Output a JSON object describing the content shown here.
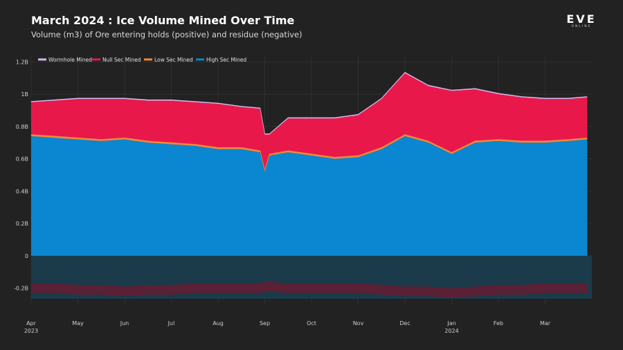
{
  "header": {
    "title": "March 2024 : Ice Volume Mined Over Time",
    "subtitle": "Volume (m3) of Ore entering holds (positive) and residue (negative)"
  },
  "logo": {
    "main": "EVE",
    "sub": "ONLINE"
  },
  "colors": {
    "background": "#222222",
    "grid": "#3a3a3a",
    "wormhole": "#d6b8f0",
    "null_sec": "#e8194a",
    "low_sec": "#f08a3a",
    "high_sec": "#0a87d0",
    "residue_fill": "#1b3a4a",
    "residue_band": "#5a2036"
  },
  "chart_data": {
    "type": "area",
    "title": "March 2024 : Ice Volume Mined Over Time",
    "subtitle": "Volume (m3) of Ore entering holds (positive) and residue (negative)",
    "stacked": true,
    "ylim": [
      -0.3,
      1.24
    ],
    "y_ticks": [
      {
        "value": 1.2,
        "label": "1.2B"
      },
      {
        "value": 1.0,
        "label": "1B"
      },
      {
        "value": 0.8,
        "label": "0.8B"
      },
      {
        "value": 0.6,
        "label": "0.6B"
      },
      {
        "value": 0.4,
        "label": "0.4B"
      },
      {
        "value": 0.2,
        "label": "0.2B"
      },
      {
        "value": 0.0,
        "label": "0"
      },
      {
        "value": -0.2,
        "label": "-0.2B"
      }
    ],
    "x_ticks": [
      {
        "month": 0,
        "label": "Apr",
        "year": "2023"
      },
      {
        "month": 1,
        "label": "May",
        "year": ""
      },
      {
        "month": 2,
        "label": "Jun",
        "year": ""
      },
      {
        "month": 3,
        "label": "Jul",
        "year": ""
      },
      {
        "month": 4,
        "label": "Aug",
        "year": ""
      },
      {
        "month": 5,
        "label": "Sep",
        "year": ""
      },
      {
        "month": 6,
        "label": "Oct",
        "year": ""
      },
      {
        "month": 7,
        "label": "Nov",
        "year": ""
      },
      {
        "month": 8,
        "label": "Dec",
        "year": ""
      },
      {
        "month": 9,
        "label": "Jan",
        "year": "2024"
      },
      {
        "month": 10,
        "label": "Feb",
        "year": ""
      },
      {
        "month": 11,
        "label": "Mar",
        "year": ""
      }
    ],
    "x_range_months": [
      0,
      12
    ],
    "legend": [
      "Wormhole Mined",
      "Null Sec Mined",
      "Low Sec Mined",
      "High Sec Mined"
    ],
    "legend_position": "top-left",
    "x": [
      0,
      0.5,
      1,
      1.5,
      2,
      2.5,
      3,
      3.5,
      4,
      4.5,
      4.9,
      5,
      5.1,
      5.5,
      6,
      6.5,
      7,
      7.5,
      8,
      8.5,
      9,
      9.5,
      10,
      10.5,
      11,
      11.5,
      11.9
    ],
    "series": [
      {
        "name": "High Sec Mined",
        "values": [
          0.74,
          0.73,
          0.72,
          0.71,
          0.72,
          0.7,
          0.69,
          0.68,
          0.66,
          0.66,
          0.64,
          0.52,
          0.62,
          0.64,
          0.62,
          0.6,
          0.61,
          0.66,
          0.74,
          0.7,
          0.63,
          0.7,
          0.71,
          0.7,
          0.7,
          0.71,
          0.72
        ]
      },
      {
        "name": "Low Sec Mined",
        "values": [
          0.01,
          0.01,
          0.01,
          0.01,
          0.01,
          0.01,
          0.01,
          0.01,
          0.01,
          0.01,
          0.01,
          0.01,
          0.01,
          0.01,
          0.01,
          0.01,
          0.01,
          0.01,
          0.01,
          0.01,
          0.01,
          0.01,
          0.01,
          0.01,
          0.01,
          0.01,
          0.01
        ]
      },
      {
        "name": "Null Sec Mined",
        "values": [
          0.2,
          0.22,
          0.24,
          0.25,
          0.24,
          0.25,
          0.26,
          0.26,
          0.27,
          0.25,
          0.26,
          0.22,
          0.12,
          0.2,
          0.22,
          0.24,
          0.25,
          0.3,
          0.38,
          0.34,
          0.38,
          0.32,
          0.28,
          0.27,
          0.26,
          0.25,
          0.25
        ]
      },
      {
        "name": "Wormhole Mined",
        "values": [
          0.005,
          0.005,
          0.005,
          0.005,
          0.005,
          0.005,
          0.005,
          0.005,
          0.005,
          0.005,
          0.005,
          0.005,
          0.005,
          0.005,
          0.005,
          0.005,
          0.005,
          0.005,
          0.005,
          0.005,
          0.005,
          0.005,
          0.005,
          0.005,
          0.005,
          0.005,
          0.005
        ]
      },
      {
        "name": "Residue",
        "values": [
          -0.2,
          -0.2,
          -0.21,
          -0.21,
          -0.22,
          -0.21,
          -0.21,
          -0.2,
          -0.2,
          -0.2,
          -0.2,
          -0.19,
          -0.19,
          -0.2,
          -0.2,
          -0.2,
          -0.2,
          -0.21,
          -0.22,
          -0.22,
          -0.23,
          -0.22,
          -0.21,
          -0.21,
          -0.2,
          -0.2,
          -0.2
        ]
      }
    ]
  }
}
